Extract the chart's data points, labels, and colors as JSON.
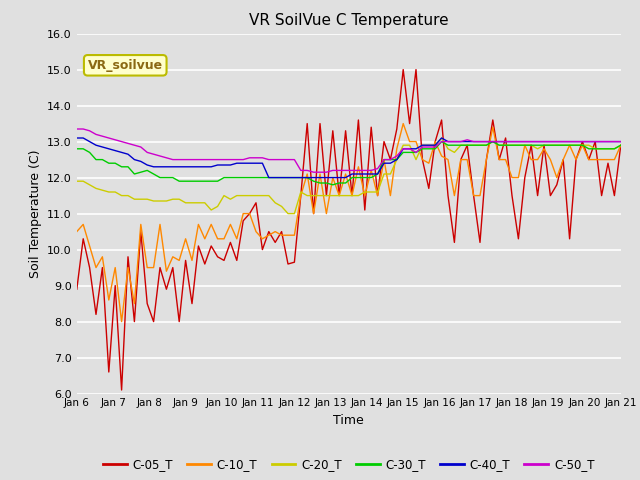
{
  "title": "VR SoilVue C Temperature",
  "xlabel": "Time",
  "ylabel": "Soil Temperature (C)",
  "ylim": [
    6.0,
    16.0
  ],
  "yticks": [
    6.0,
    7.0,
    8.0,
    9.0,
    10.0,
    11.0,
    12.0,
    13.0,
    14.0,
    15.0,
    16.0
  ],
  "background_color": "#e0e0e0",
  "plot_bg_color": "#e0e0e0",
  "grid_color": "#ffffff",
  "watermark_text": "VR_soilvue",
  "watermark_bg": "#ffffcc",
  "watermark_border": "#bbbb00",
  "legend_labels": [
    "C-05_T",
    "C-10_T",
    "C-20_T",
    "C-30_T",
    "C-40_T",
    "C-50_T"
  ],
  "line_colors": [
    "#cc0000",
    "#ff8800",
    "#cccc00",
    "#00cc00",
    "#0000cc",
    "#cc00cc"
  ],
  "xtick_labels": [
    "Jan 6",
    "Jan 7",
    "Jan 8",
    "Jan 9",
    "Jan 10",
    "Jan 11",
    "Jan 12",
    "Jan 13",
    "Jan 14",
    "Jan 15",
    "Jan 16",
    "Jan 17",
    "Jan 18",
    "Jan 19",
    "Jan 20",
    "Jan 21"
  ],
  "series": {
    "C-05_T": [
      8.9,
      10.3,
      9.5,
      8.2,
      9.5,
      6.6,
      9.0,
      6.1,
      9.8,
      8.0,
      10.5,
      8.5,
      8.0,
      9.5,
      8.9,
      9.5,
      8.0,
      9.7,
      8.5,
      10.1,
      9.6,
      10.1,
      9.8,
      9.7,
      10.2,
      9.7,
      10.8,
      11.0,
      11.3,
      10.0,
      10.5,
      10.2,
      10.5,
      9.6,
      9.65,
      11.5,
      13.5,
      11.0,
      13.5,
      11.5,
      13.3,
      11.5,
      13.3,
      11.5,
      13.6,
      11.1,
      13.4,
      11.5,
      13.0,
      12.5,
      13.35,
      15.0,
      13.5,
      15.0,
      12.5,
      11.7,
      13.0,
      13.6,
      11.5,
      10.2,
      12.5,
      12.9,
      11.5,
      10.2,
      12.5,
      13.6,
      12.5,
      13.1,
      11.5,
      10.3,
      12.0,
      12.9,
      11.5,
      12.9,
      11.5,
      11.8,
      12.5,
      10.3,
      12.5,
      13.0,
      12.5,
      13.0,
      11.5,
      12.4,
      11.5,
      12.9
    ],
    "C-10_T": [
      10.5,
      10.7,
      10.1,
      9.5,
      9.8,
      8.6,
      9.5,
      8.0,
      9.5,
      8.5,
      10.7,
      9.5,
      9.5,
      10.7,
      9.4,
      9.8,
      9.7,
      10.3,
      9.7,
      10.7,
      10.3,
      10.7,
      10.3,
      10.3,
      10.7,
      10.3,
      11.0,
      11.0,
      10.5,
      10.3,
      10.4,
      10.5,
      10.4,
      10.4,
      10.4,
      11.5,
      12.1,
      11.0,
      12.1,
      11.0,
      12.0,
      11.5,
      12.1,
      11.5,
      12.3,
      11.5,
      12.2,
      11.5,
      12.5,
      11.5,
      12.8,
      13.5,
      13.0,
      13.0,
      12.5,
      12.4,
      13.0,
      12.6,
      12.5,
      11.5,
      12.5,
      12.5,
      11.5,
      11.5,
      12.5,
      13.4,
      12.5,
      12.5,
      12.0,
      12.0,
      12.9,
      12.5,
      12.5,
      12.8,
      12.5,
      12.0,
      12.5,
      12.9,
      12.5,
      12.9,
      12.5,
      12.5,
      12.5,
      12.5,
      12.5,
      12.9
    ],
    "C-20_T": [
      11.9,
      11.9,
      11.8,
      11.7,
      11.65,
      11.6,
      11.6,
      11.5,
      11.5,
      11.4,
      11.4,
      11.4,
      11.35,
      11.35,
      11.35,
      11.4,
      11.4,
      11.3,
      11.3,
      11.3,
      11.3,
      11.1,
      11.2,
      11.5,
      11.4,
      11.5,
      11.5,
      11.5,
      11.5,
      11.5,
      11.5,
      11.3,
      11.2,
      11.0,
      11.0,
      11.6,
      11.5,
      11.5,
      11.5,
      11.5,
      11.5,
      11.5,
      11.5,
      11.5,
      11.5,
      11.6,
      11.6,
      11.6,
      12.1,
      12.1,
      12.5,
      12.9,
      12.9,
      12.5,
      12.9,
      12.9,
      12.9,
      13.1,
      12.8,
      12.7,
      12.9,
      12.9,
      12.9,
      12.9,
      12.9,
      13.0,
      12.9,
      12.9,
      12.9,
      12.9,
      12.9,
      12.9,
      12.8,
      12.9,
      12.9,
      12.9,
      12.9,
      12.9,
      12.9,
      12.9,
      12.9,
      12.8,
      12.8,
      12.8,
      12.8,
      12.9
    ],
    "C-30_T": [
      12.8,
      12.8,
      12.7,
      12.5,
      12.5,
      12.4,
      12.4,
      12.3,
      12.3,
      12.1,
      12.15,
      12.2,
      12.1,
      12.0,
      12.0,
      12.0,
      11.9,
      11.9,
      11.9,
      11.9,
      11.9,
      11.9,
      11.9,
      12.0,
      12.0,
      12.0,
      12.0,
      12.0,
      12.0,
      12.0,
      12.0,
      12.0,
      12.0,
      12.0,
      12.0,
      12.0,
      12.0,
      11.9,
      11.85,
      11.85,
      11.8,
      11.85,
      11.85,
      12.0,
      12.0,
      12.0,
      12.0,
      12.1,
      12.5,
      12.5,
      12.5,
      12.7,
      12.7,
      12.7,
      12.8,
      12.8,
      12.8,
      13.0,
      12.9,
      12.9,
      12.9,
      12.9,
      12.9,
      12.9,
      12.9,
      13.0,
      12.9,
      12.9,
      12.9,
      12.9,
      12.9,
      12.9,
      12.9,
      12.9,
      12.9,
      12.9,
      12.9,
      12.9,
      12.9,
      12.9,
      12.8,
      12.8,
      12.8,
      12.8,
      12.8,
      12.9
    ],
    "C-40_T": [
      13.1,
      13.1,
      13.0,
      12.9,
      12.85,
      12.8,
      12.75,
      12.7,
      12.65,
      12.5,
      12.45,
      12.35,
      12.3,
      12.3,
      12.3,
      12.3,
      12.3,
      12.3,
      12.3,
      12.3,
      12.3,
      12.3,
      12.35,
      12.35,
      12.35,
      12.4,
      12.4,
      12.4,
      12.4,
      12.4,
      12.0,
      12.0,
      12.0,
      12.0,
      12.0,
      12.0,
      12.0,
      12.0,
      12.0,
      12.0,
      12.0,
      12.0,
      12.0,
      12.1,
      12.1,
      12.1,
      12.1,
      12.1,
      12.4,
      12.4,
      12.5,
      12.8,
      12.8,
      12.8,
      12.9,
      12.9,
      12.9,
      13.1,
      13.0,
      13.0,
      13.0,
      13.0,
      13.0,
      13.0,
      13.0,
      13.0,
      13.0,
      13.0,
      13.0,
      13.0,
      13.0,
      13.0,
      13.0,
      13.0,
      13.0,
      13.0,
      13.0,
      13.0,
      13.0,
      13.0,
      13.0,
      13.0,
      13.0,
      13.0,
      13.0,
      13.0
    ],
    "C-50_T": [
      13.35,
      13.35,
      13.3,
      13.2,
      13.15,
      13.1,
      13.05,
      13.0,
      12.95,
      12.9,
      12.85,
      12.7,
      12.65,
      12.6,
      12.55,
      12.5,
      12.5,
      12.5,
      12.5,
      12.5,
      12.5,
      12.5,
      12.5,
      12.5,
      12.5,
      12.5,
      12.5,
      12.55,
      12.55,
      12.55,
      12.5,
      12.5,
      12.5,
      12.5,
      12.5,
      12.2,
      12.2,
      12.15,
      12.15,
      12.15,
      12.2,
      12.2,
      12.2,
      12.2,
      12.2,
      12.2,
      12.2,
      12.25,
      12.5,
      12.5,
      12.6,
      12.8,
      12.8,
      12.7,
      12.85,
      12.85,
      12.85,
      13.0,
      13.0,
      13.0,
      13.0,
      13.05,
      13.0,
      13.0,
      13.0,
      13.0,
      13.0,
      13.0,
      13.0,
      13.0,
      13.0,
      13.0,
      13.0,
      13.0,
      13.0,
      13.0,
      13.0,
      13.0,
      13.0,
      13.0,
      13.0,
      13.0,
      13.0,
      13.0,
      13.0,
      13.0
    ]
  }
}
